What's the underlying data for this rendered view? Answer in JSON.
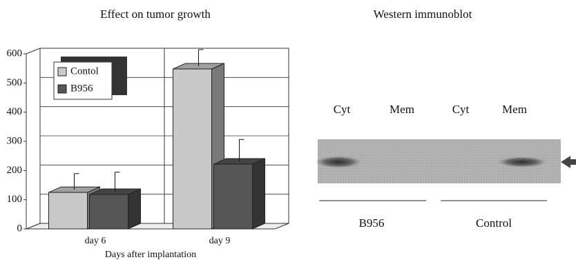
{
  "chart_data": {
    "type": "bar3d",
    "title": "Effect on tumor growth",
    "x_label": "Days after implantation",
    "categories": [
      "day 6",
      "day 9"
    ],
    "series": [
      {
        "name": "Contol",
        "color": "#c9c9c9",
        "values": [
          125,
          548
        ],
        "errors": [
          55,
          57
        ]
      },
      {
        "name": "B956",
        "color": "#555555",
        "values": [
          118,
          222
        ],
        "errors": [
          67,
          75
        ]
      }
    ],
    "ylim": [
      0,
      600
    ],
    "yticks": [
      0,
      100,
      200,
      300,
      400,
      500,
      600
    ],
    "grid": true,
    "legend": "top-left"
  },
  "blot": {
    "title": "Western immunoblot",
    "lanes": [
      "Cyt",
      "Mem",
      "Cyt",
      "Mem"
    ],
    "groups": [
      "B956",
      "Control"
    ]
  }
}
